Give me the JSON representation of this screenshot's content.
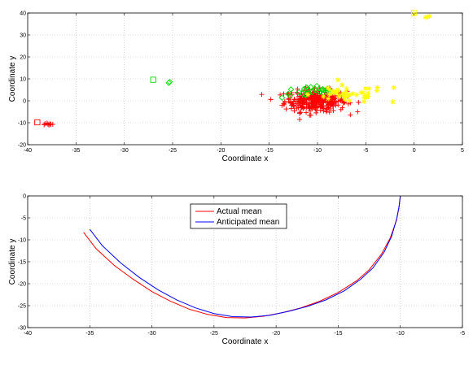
{
  "chart_data": [
    {
      "type": "scatter",
      "title": "",
      "xlabel": "Coordinate x",
      "ylabel": "Coordinate y",
      "xlim": [
        -40,
        5
      ],
      "ylim": [
        -20,
        40
      ],
      "xticks": [
        -40,
        -35,
        -30,
        -25,
        -20,
        -15,
        -10,
        -5,
        0,
        5
      ],
      "yticks": [
        -20,
        -10,
        0,
        10,
        20,
        30,
        40
      ],
      "grid": true,
      "series": [
        {
          "color": "#ff0000",
          "marker": "plus",
          "clusters": [
            {
              "cx": -10.2,
              "cy": 0,
              "sx": 1.6,
              "sy": 2.5,
              "n": 320,
              "xmin": -16.5,
              "xmax": -4.5
            }
          ],
          "points": [
            {
              "x": -37.9,
              "y": -10.6
            },
            {
              "x": -38.2,
              "y": -10.4
            },
            {
              "x": -37.6,
              "y": -10.8
            },
            {
              "x": -38.0,
              "y": -10.2
            },
            {
              "x": -37.7,
              "y": -10.5
            },
            {
              "x": -38.3,
              "y": -10.9
            },
            {
              "x": -37.4,
              "y": -10.7
            },
            {
              "x": -37.8,
              "y": -11.0
            }
          ]
        },
        {
          "color": "#00dd00",
          "marker": "diamond",
          "clusters": [
            {
              "cx": -10.5,
              "cy": 4,
              "sx": 1.6,
              "sy": 1.4,
              "n": 30,
              "xmin": -14,
              "xmax": -7
            }
          ],
          "points": [
            {
              "x": -25.4,
              "y": 8.2
            },
            {
              "x": -25.3,
              "y": 8.6
            }
          ]
        },
        {
          "color": "#ffff00",
          "marker": "star",
          "clusters": [
            {
              "cx": -7,
              "cy": 3,
              "sx": 2.0,
              "sy": 2.0,
              "n": 45,
              "xmin": -11,
              "xmax": -2
            }
          ],
          "points": [
            {
              "x": 1.4,
              "y": 38.2
            },
            {
              "x": 1.6,
              "y": 38.6
            },
            {
              "x": 1.2,
              "y": 38.0
            },
            {
              "x": 0.0,
              "y": 39.6
            },
            {
              "x": -2.1,
              "y": 6.0
            },
            {
              "x": -2.2,
              "y": -0.5
            }
          ]
        },
        {
          "color": "#ff0000",
          "marker": "square",
          "points": [
            {
              "x": -39.0,
              "y": -9.8
            }
          ]
        },
        {
          "color": "#00dd00",
          "marker": "square",
          "points": [
            {
              "x": -27.0,
              "y": 9.6
            }
          ]
        },
        {
          "color": "#ffff00",
          "marker": "square",
          "points": [
            {
              "x": 0.0,
              "y": 40.0
            }
          ]
        }
      ]
    },
    {
      "type": "line",
      "title": "",
      "xlabel": "Coordinate x",
      "ylabel": "Coordinate y",
      "xlim": [
        -40,
        -5
      ],
      "ylim": [
        -30,
        0
      ],
      "xticks": [
        -40,
        -35,
        -30,
        -25,
        -20,
        -15,
        -10,
        -5
      ],
      "yticks": [
        -30,
        -25,
        -20,
        -15,
        -10,
        -5,
        0
      ],
      "grid": true,
      "legend": {
        "position": "top-center"
      },
      "series": [
        {
          "name": "Actual mean",
          "color": "#ff0000",
          "x": [
            -35.5,
            -34.5,
            -33.0,
            -31.5,
            -30.0,
            -28.5,
            -27.0,
            -25.5,
            -24.0,
            -22.5,
            -21.0,
            -19.5,
            -18.0,
            -16.5,
            -15.0,
            -13.5,
            -12.5,
            -11.5,
            -10.8,
            -10.3,
            -10.1,
            -10.0
          ],
          "y": [
            -8.3,
            -12.0,
            -15.9,
            -19.0,
            -21.8,
            -24.0,
            -25.8,
            -27.0,
            -27.7,
            -27.8,
            -27.4,
            -26.6,
            -25.5,
            -24.0,
            -22.0,
            -19.3,
            -16.8,
            -13.2,
            -9.5,
            -5.5,
            -2.5,
            0.0
          ]
        },
        {
          "name": "Anticipated mean",
          "color": "#0000ff",
          "x": [
            -35.0,
            -34.0,
            -32.5,
            -31.0,
            -29.5,
            -28.0,
            -26.5,
            -25.0,
            -23.5,
            -22.0,
            -20.5,
            -19.0,
            -17.5,
            -16.0,
            -14.5,
            -13.2,
            -12.2,
            -11.3,
            -10.7,
            -10.3,
            -10.1,
            -10.0
          ],
          "y": [
            -7.6,
            -11.3,
            -15.3,
            -18.6,
            -21.4,
            -23.7,
            -25.5,
            -26.8,
            -27.5,
            -27.6,
            -27.2,
            -26.3,
            -25.2,
            -23.7,
            -21.6,
            -19.0,
            -16.4,
            -12.8,
            -9.2,
            -5.3,
            -2.4,
            0.0
          ]
        }
      ]
    }
  ]
}
